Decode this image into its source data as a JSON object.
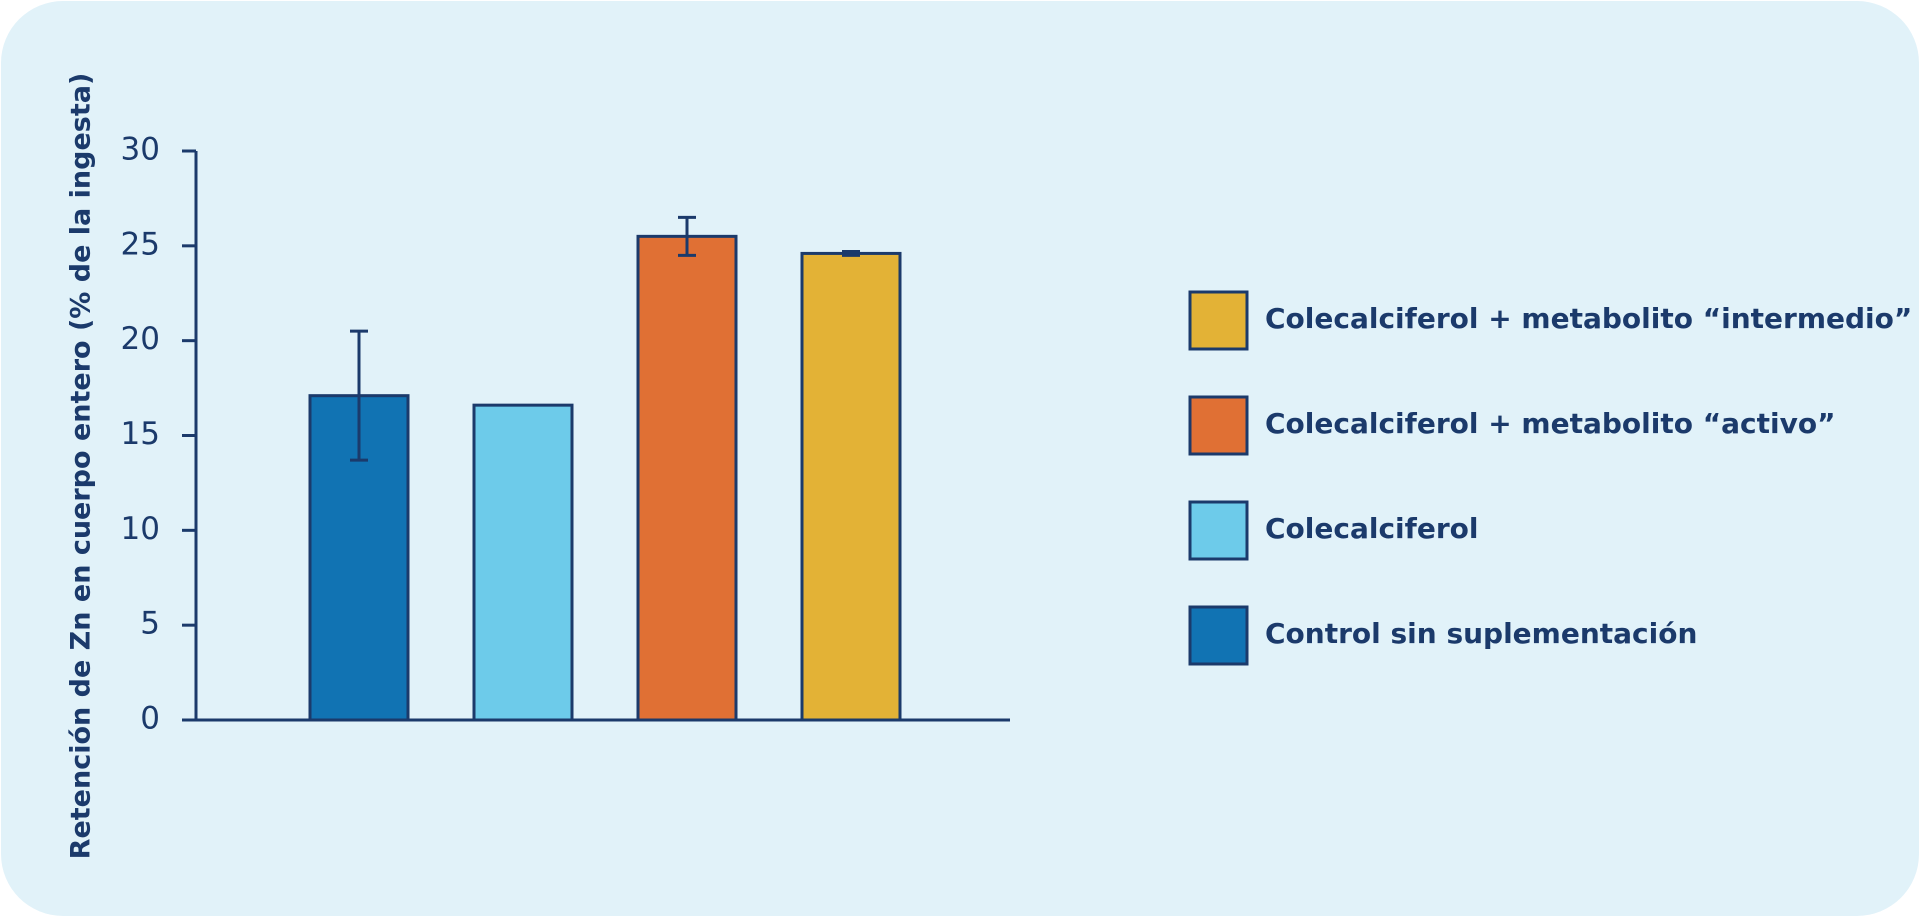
{
  "chart_data": {
    "type": "bar",
    "y_label": "Retención de Zn en cuerpo entero (% de la ingesta)",
    "categories": [
      null
    ],
    "series": [
      {
        "name": "Control sin suplementación",
        "color": "#1173b3",
        "values": [
          17.1
        ],
        "errors": [
          3.4
        ]
      },
      {
        "name": "Colecalciferol",
        "color": "#6dcbea",
        "values": [
          16.6
        ]
      },
      {
        "name": "Colecalciferol + metabolito “activo”",
        "color": "#e07034",
        "values": [
          25.5
        ],
        "errors": [
          1.0
        ]
      },
      {
        "name": "Colecalciferol + metabolito “intermedio”",
        "color": "#e3b236",
        "values": [
          24.6
        ],
        "errors": [
          0.1
        ]
      }
    ],
    "ylim": [
      0,
      30
    ],
    "yticks": [
      0,
      5,
      10,
      15,
      20,
      25,
      30
    ],
    "grid": false,
    "legend": "right"
  }
}
